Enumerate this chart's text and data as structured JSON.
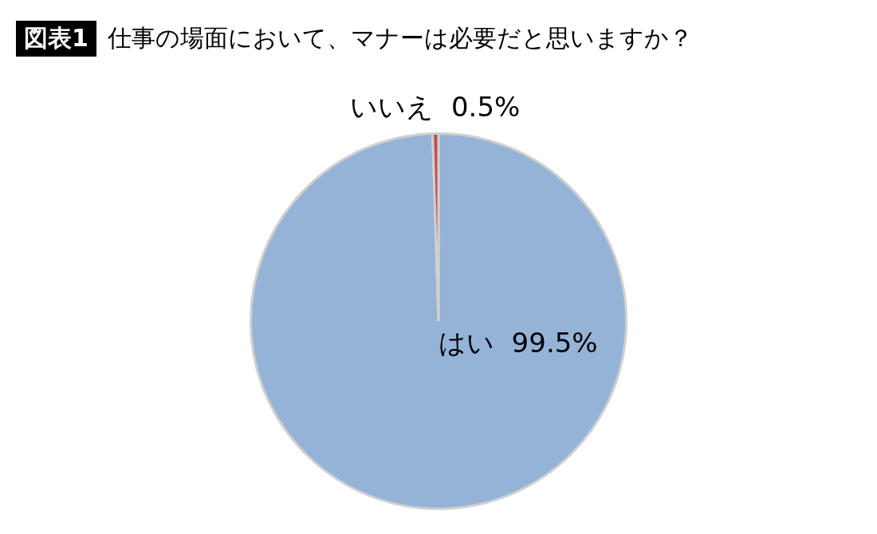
{
  "chart_data": {
    "type": "pie",
    "title": "仕事の場面において、マナーは必要だと思いますか？",
    "annotations": [
      "図表1"
    ],
    "categories": [
      "はい",
      "いいえ"
    ],
    "values": [
      99.5,
      0.5
    ],
    "value_labels": [
      "99.5%",
      "0.5%"
    ],
    "colors": [
      "#95b3d7",
      "#c0504d"
    ],
    "legend": false
  }
}
